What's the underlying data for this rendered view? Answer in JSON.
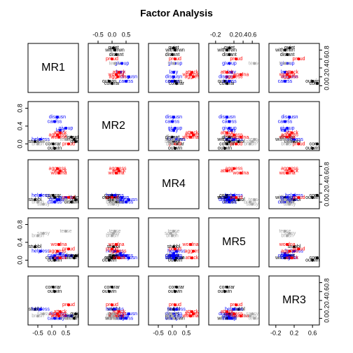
{
  "chart_data": {
    "type": "scatter-matrix",
    "title": "Factor Analysis",
    "variables": [
      {
        "name": "MR1",
        "xlim": [
          -0.85,
          0.95
        ],
        "xticks": [
          -0.5,
          {
            "value": 0,
            "label": "0.0"
          },
          0.5
        ],
        "ylim": [
          -0.15,
          0.95
        ],
        "yticks": [
          {
            "value": 0,
            "label": "0.0"
          },
          0.2,
          0.4,
          0.6,
          0.8
        ]
      },
      {
        "name": "MR2",
        "xlim": [
          -0.85,
          0.95
        ],
        "xticks": [
          -0.5,
          {
            "value": 0,
            "label": "0.0"
          },
          0.5
        ],
        "ylim": [
          -0.15,
          0.95
        ],
        "yticks": [
          {
            "value": 0,
            "label": "0.0"
          },
          0.4,
          0.8
        ]
      },
      {
        "name": "MR4",
        "xlim": [
          -0.85,
          0.95
        ],
        "xticks": [
          -0.5,
          {
            "value": 0,
            "label": "0.0"
          },
          0.5
        ],
        "ylim": [
          -0.15,
          0.95
        ],
        "yticks": [
          {
            "value": 0,
            "label": "0.0"
          },
          0.2,
          0.4,
          0.6,
          0.8
        ]
      },
      {
        "name": "MR5",
        "xlim": [
          -0.35,
          0.75
        ],
        "xticks": [
          -0.2,
          0.2,
          0.4,
          0.6
        ],
        "ylim": [
          -0.15,
          0.95
        ],
        "yticks": [
          {
            "value": 0,
            "label": "0.0"
          },
          0.4,
          0.8
        ]
      },
      {
        "name": "MR3",
        "xlim": [
          -0.35,
          0.75
        ],
        "xticks": [
          -0.2,
          0.2,
          0.6
        ],
        "ylim": [
          -0.15,
          0.95
        ],
        "yticks": [
          {
            "value": 0,
            "label": "0.0"
          },
          0.2,
          0.4,
          0.6,
          0.8
        ]
      }
    ],
    "series": [
      {
        "name": "quiet",
        "color": "#000000",
        "values": [
          0.85,
          0.05,
          0.05,
          0.1,
          0.1
        ]
      },
      {
        "name": "withdrwn",
        "color": "#000000",
        "values": [
          0.8,
          0.1,
          0.1,
          0.05,
          0.0
        ]
      },
      {
        "name": "distant",
        "color": "#000000",
        "values": [
          0.7,
          0.15,
          0.0,
          0.1,
          0.05
        ]
      },
      {
        "name": "outwin",
        "color": "#000000",
        "values": [
          0.1,
          -0.1,
          0.1,
          0.0,
          0.6
        ]
      },
      {
        "name": "cornrar",
        "color": "#000000",
        "values": [
          0.05,
          0.0,
          0.15,
          0.05,
          0.7
        ]
      },
      {
        "name": "stubbl",
        "color": "#000000",
        "values": [
          -0.6,
          0.05,
          0.05,
          0.3,
          0.2
        ]
      },
      {
        "name": "giveup",
        "color": "#0000ff",
        "values": [
          0.5,
          0.35,
          0.1,
          0.1,
          0.05
        ]
      },
      {
        "name": "disgusn",
        "color": "#0000ff",
        "values": [
          0.2,
          0.6,
          0.05,
          0.05,
          0.1
        ]
      },
      {
        "name": "caress",
        "color": "#0000ff",
        "values": [
          0.1,
          0.5,
          0.0,
          0.1,
          0.0
        ]
      },
      {
        "name": "lazy",
        "color": "#0000ff",
        "values": [
          0.3,
          0.3,
          0.05,
          0.15,
          0.0
        ]
      },
      {
        "name": "helpless",
        "color": "#0000ff",
        "values": [
          -0.4,
          0.1,
          0.15,
          0.2,
          0.2
        ]
      },
      {
        "name": "attack",
        "color": "#ff0000",
        "values": [
          0.3,
          0.25,
          0.7,
          0.05,
          0.15
        ]
      },
      {
        "name": "aggress",
        "color": "#ff0000",
        "values": [
          0.2,
          0.2,
          0.75,
          0.2,
          0.1
        ]
      },
      {
        "name": "wordna",
        "color": "#ff0000",
        "values": [
          0.25,
          0.15,
          0.65,
          0.35,
          0.05
        ]
      },
      {
        "name": "proud",
        "color": "#ff0000",
        "values": [
          0.6,
          0.0,
          0.1,
          0.25,
          0.3
        ]
      },
      {
        "name": "sassy",
        "color": "#aaaaaa",
        "values": [
          -0.3,
          0.05,
          -0.05,
          0.6,
          0.1
        ]
      },
      {
        "name": "brash",
        "color": "#aaaaaa",
        "values": [
          -0.5,
          0.0,
          0.0,
          0.55,
          0.05
        ]
      },
      {
        "name": "tense",
        "color": "#aaaaaa",
        "values": [
          0.5,
          0.1,
          0.05,
          0.65,
          0.0
        ]
      }
    ]
  }
}
